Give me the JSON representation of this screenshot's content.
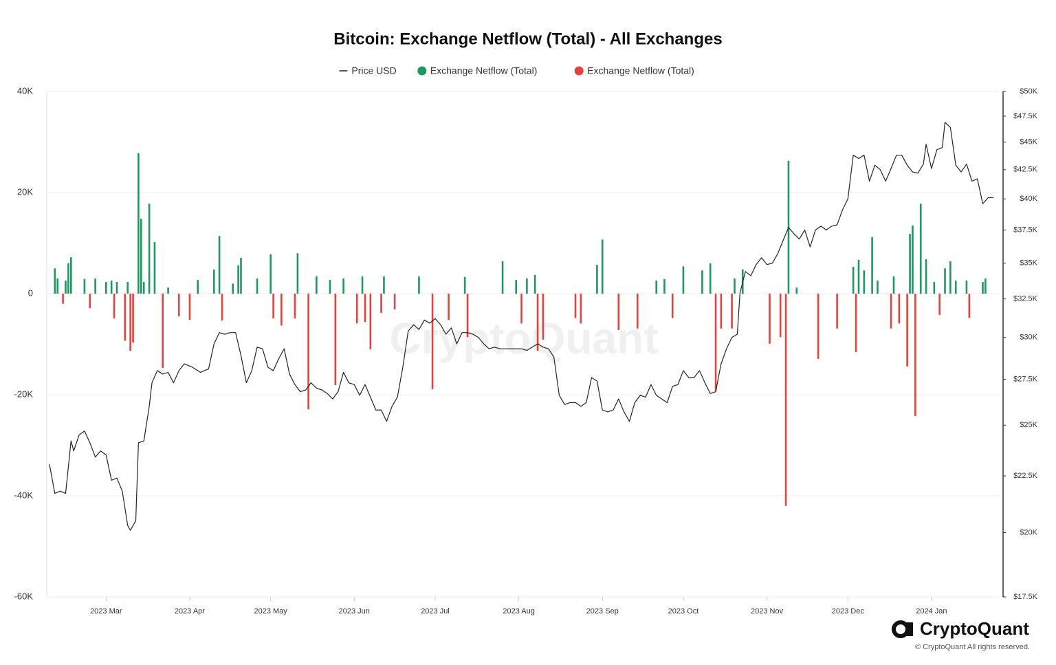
{
  "chart_data": {
    "type": "bar-line",
    "title": "Bitcoin: Exchange Netflow (Total) - All Exchanges",
    "legend": "top",
    "grid": true,
    "watermark": "CryptoQuant",
    "logo_text": "CryptoQuant",
    "copyright": "© CryptoQuant All rights reserved.",
    "xlim": [
      -1,
      352
    ],
    "xticks": [
      {
        "value": 21,
        "label": "2023 Mar"
      },
      {
        "value": 52,
        "label": "2023 Apr"
      },
      {
        "value": 82,
        "label": "2023 May"
      },
      {
        "value": 113,
        "label": "2023 Jun"
      },
      {
        "value": 143,
        "label": "2023 Jul"
      },
      {
        "value": 174,
        "label": "2023 Aug"
      },
      {
        "value": 205,
        "label": "2023 Sep"
      },
      {
        "value": 235,
        "label": "2023 Oct"
      },
      {
        "value": 266,
        "label": "2023 Nov"
      },
      {
        "value": 296,
        "label": "2023 Dec"
      },
      {
        "value": 327,
        "label": "2024 Jan"
      }
    ],
    "ylim": [
      -60000,
      40000
    ],
    "yticks": [
      {
        "value": -60000,
        "label": "-60K"
      },
      {
        "value": -40000,
        "label": "-40K"
      },
      {
        "value": -20000,
        "label": "-20K"
      },
      0,
      {
        "value": 20000,
        "label": "20K"
      },
      {
        "value": 40000,
        "label": "40K"
      }
    ],
    "y2lim": [
      17500,
      50000
    ],
    "y2log": true,
    "y2ticks": [
      {
        "value": 17500,
        "label": "$17.5K"
      },
      {
        "value": 20000,
        "label": "$20K"
      },
      {
        "value": 22500,
        "label": "$22.5K"
      },
      {
        "value": 25000,
        "label": "$25K"
      },
      {
        "value": 27500,
        "label": "$27.5K"
      },
      {
        "value": 30000,
        "label": "$30K"
      },
      {
        "value": 32500,
        "label": "$32.5K"
      },
      {
        "value": 35000,
        "label": "$35K"
      },
      {
        "value": 37500,
        "label": "$37.5K"
      },
      {
        "value": 40000,
        "label": "$40K"
      },
      {
        "value": 42500,
        "label": "$42.5K"
      },
      {
        "value": 45000,
        "label": "$45K"
      },
      {
        "value": 47500,
        "label": "$47.5K"
      },
      {
        "value": 50000,
        "label": "$50K"
      }
    ],
    "series": [
      {
        "name": "Price USD",
        "type": "line",
        "axis": "y2",
        "color": "#222222",
        "x": [
          0,
          2,
          4,
          6,
          8,
          9,
          11,
          13,
          15,
          17,
          19,
          21,
          23,
          25,
          27,
          29,
          30,
          32,
          33,
          35,
          37,
          38,
          40,
          42,
          44,
          46,
          48,
          50,
          53,
          56,
          59,
          61,
          63,
          65,
          67,
          69,
          71,
          73,
          75,
          77,
          79,
          81,
          83,
          85,
          87,
          89,
          91,
          93,
          95,
          97,
          99,
          101,
          103,
          105,
          107,
          109,
          111,
          113,
          115,
          117,
          119,
          121,
          123,
          125,
          127,
          129,
          131,
          133,
          135,
          137,
          139,
          141,
          143,
          145,
          147,
          149,
          151,
          153,
          155,
          157,
          159,
          161,
          163,
          165,
          167,
          169,
          171,
          173,
          175,
          177,
          179,
          181,
          183,
          185,
          187,
          189,
          191,
          193,
          195,
          197,
          199,
          201,
          203,
          205,
          207,
          209,
          211,
          213,
          215,
          217,
          219,
          221,
          223,
          225,
          227,
          229,
          231,
          233,
          235,
          237,
          239,
          241,
          243,
          245,
          247,
          249,
          251,
          253,
          255,
          256,
          258,
          260,
          262,
          264,
          266,
          268,
          270,
          272,
          274,
          276,
          278,
          280,
          282,
          284,
          286,
          288,
          290,
          292,
          294,
          296,
          298,
          300,
          302,
          304,
          306,
          308,
          310,
          312,
          314,
          316,
          318,
          320,
          322,
          324,
          325,
          327,
          329,
          331,
          332,
          334,
          336,
          338,
          340,
          342,
          344,
          346,
          348,
          350
        ],
        "values": [
          23050,
          21700,
          21800,
          21700,
          24200,
          23700,
          24500,
          24700,
          24100,
          23400,
          23700,
          23500,
          22300,
          22400,
          21800,
          20300,
          20100,
          20500,
          24100,
          24200,
          26000,
          27300,
          28000,
          27800,
          27900,
          27300,
          28000,
          28400,
          28200,
          27900,
          28100,
          29600,
          30300,
          30200,
          30300,
          30300,
          28900,
          27300,
          28000,
          29400,
          29300,
          28200,
          28000,
          28700,
          29300,
          27800,
          27200,
          26800,
          26900,
          27300,
          27000,
          26900,
          26700,
          26400,
          26800,
          27900,
          27300,
          27200,
          26600,
          27200,
          26500,
          25800,
          25800,
          25200,
          26000,
          26500,
          28200,
          30400,
          30800,
          30500,
          31100,
          30900,
          31200,
          30800,
          30200,
          30600,
          29600,
          30300,
          30300,
          30200,
          30000,
          29600,
          29300,
          29400,
          29300,
          29300,
          29300,
          29300,
          29300,
          29200,
          29400,
          29600,
          29400,
          29300,
          28800,
          26600,
          26100,
          26200,
          26200,
          26000,
          26200,
          27600,
          27400,
          25800,
          25700,
          25800,
          26400,
          25700,
          25200,
          26200,
          26600,
          26500,
          27200,
          26600,
          26400,
          26200,
          27100,
          27200,
          28000,
          27600,
          27600,
          28000,
          27300,
          26700,
          26800,
          28400,
          29300,
          30000,
          30200,
          32900,
          34400,
          34100,
          34900,
          35400,
          34900,
          35000,
          35700,
          36700,
          37700,
          37200,
          36800,
          37500,
          36200,
          37500,
          37800,
          37500,
          37800,
          37900,
          39100,
          40000,
          43800,
          43500,
          43800,
          41500,
          42900,
          42500,
          41500,
          42600,
          43800,
          43800,
          42900,
          42300,
          42200,
          43000,
          44800,
          42600,
          44300,
          44500,
          46900,
          46400,
          42900,
          42300,
          43000,
          41500,
          41700,
          39600,
          40100,
          40100
        ]
      },
      {
        "name": "Exchange Netflow (Total)",
        "type": "bar",
        "color": "#1a9a5f",
        "x": [
          2,
          3,
          6,
          7,
          8,
          13,
          17,
          21,
          23,
          25,
          29,
          33,
          34,
          35,
          37,
          39,
          44,
          55,
          61,
          63,
          68,
          70,
          71,
          77,
          82,
          92,
          99,
          104,
          109,
          116,
          124,
          137,
          154,
          168,
          173,
          177,
          180,
          203,
          205,
          225,
          228,
          235,
          242,
          245,
          254,
          257,
          274,
          277,
          298,
          300,
          302,
          305,
          307,
          313,
          319,
          320,
          323,
          325,
          328,
          332,
          334,
          336,
          340,
          346,
          347
        ],
        "values": [
          5000,
          3000,
          2600,
          6000,
          7200,
          2900,
          3000,
          2300,
          2600,
          2300,
          2300,
          27800,
          14800,
          2300,
          17800,
          10200,
          1200,
          2700,
          4800,
          11400,
          2000,
          5600,
          7100,
          3000,
          7800,
          8000,
          3400,
          2700,
          3000,
          3400,
          3400,
          3400,
          3300,
          6400,
          2700,
          3000,
          3700,
          5700,
          10700,
          2600,
          2900,
          5400,
          4600,
          6000,
          3000,
          4800,
          26300,
          1200,
          5300,
          6700,
          4600,
          11200,
          2600,
          3400,
          11800,
          13500,
          17800,
          6800,
          2300,
          5000,
          6400,
          2600,
          2600,
          2300,
          3000
        ]
      },
      {
        "name": "Exchange Netflow (Total)",
        "type": "bar",
        "color": "#e8403a",
        "x": [
          5,
          15,
          24,
          28,
          30,
          31,
          42,
          48,
          52,
          64,
          83,
          86,
          91,
          96,
          106,
          114,
          117,
          119,
          123,
          128,
          142,
          148,
          155,
          175,
          181,
          183,
          195,
          197,
          211,
          218,
          231,
          247,
          249,
          253,
          267,
          271,
          273,
          285,
          292,
          299,
          312,
          315,
          318,
          321,
          330,
          341
        ],
        "values": [
          -2000,
          -2900,
          -4900,
          -9300,
          -11300,
          -9700,
          -14700,
          -4500,
          -5200,
          -5300,
          -4900,
          -6300,
          -4900,
          -22900,
          -18100,
          -5900,
          -5600,
          -11000,
          -3800,
          -3100,
          -18900,
          -5200,
          -8600,
          -5900,
          -11300,
          -9100,
          -4800,
          -5900,
          -7200,
          -6900,
          -4800,
          -19200,
          -6900,
          -6900,
          -9900,
          -8600,
          -42000,
          -12900,
          -6900,
          -11600,
          -6900,
          -5900,
          -14400,
          -24200,
          -4200,
          -4800
        ]
      }
    ]
  }
}
